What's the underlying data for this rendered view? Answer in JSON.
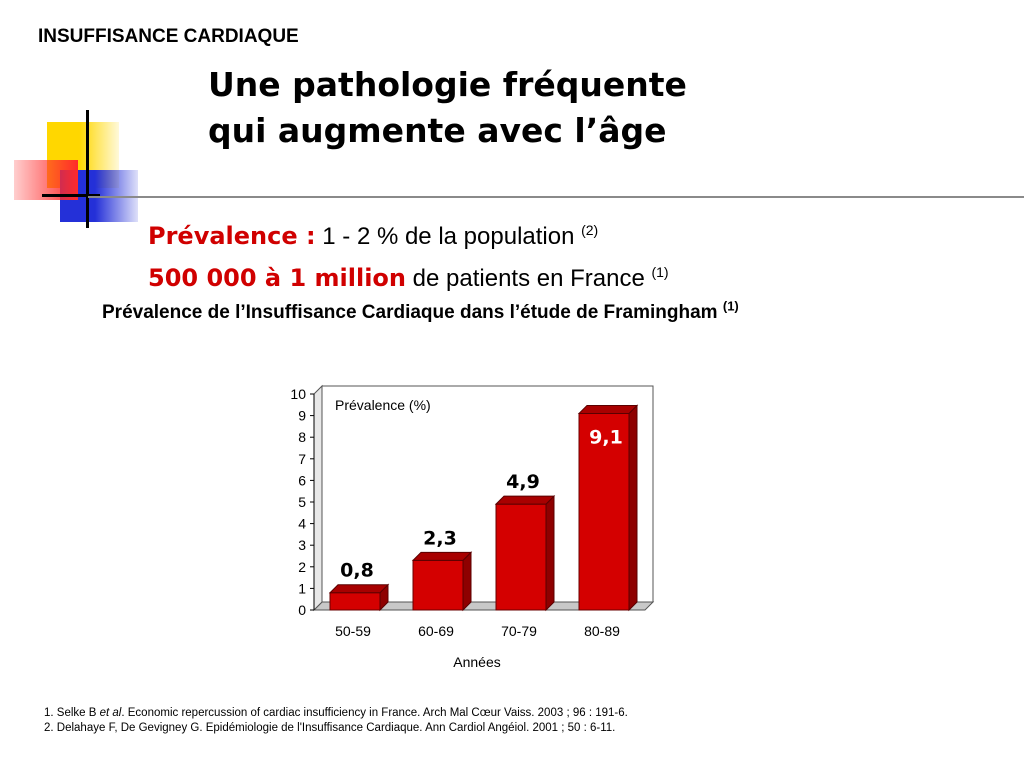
{
  "header": {
    "section_label": "INSUFFISANCE CARDIAQUE",
    "title_line1": "Une pathologie fréquente",
    "title_line2": "qui augmente avec l’âge"
  },
  "facts": {
    "prevalence_label": "Prévalence :",
    "prevalence_text": " 1 - 2 % de la population ",
    "prevalence_ref": "(2)",
    "patients_label": "500 000 à 1 million",
    "patients_text": " de patients en France ",
    "patients_ref": "(1)"
  },
  "chart_heading": {
    "text": "Prévalence de l’Insuffisance Cardiaque dans l’étude de Framingham ",
    "ref": "(1)"
  },
  "chart_data": {
    "type": "bar",
    "categories": [
      "50-59",
      "60-69",
      "70-79",
      "80-89"
    ],
    "values": [
      0.8,
      2.3,
      4.9,
      9.1
    ],
    "value_labels": [
      "0,8",
      "2,3",
      "4,9",
      "9,1"
    ],
    "ylabel": "Prévalence (%)",
    "xlabel": "Années",
    "ylim": [
      0,
      10
    ],
    "yticks": [
      "0",
      "1",
      "2",
      "3",
      "4",
      "5",
      "6",
      "7",
      "8",
      "9",
      "10"
    ],
    "bar_color": "#d40000",
    "grid": false,
    "three_d": true
  },
  "references": {
    "ref1_prefix": "1. Selke B ",
    "ref1_italic": "et al",
    "ref1_rest": ". Economic repercussion of cardiac insufficiency in France. Arch Mal Cœur Vaiss. 2003 ; 96 : 191-6.",
    "ref2": "2. Delahaye F, De Gevigney G. Epidémiologie de l'Insuffisance Cardiaque. Ann Cardiol Angéiol. 2001 ; 50 : 6-11."
  }
}
